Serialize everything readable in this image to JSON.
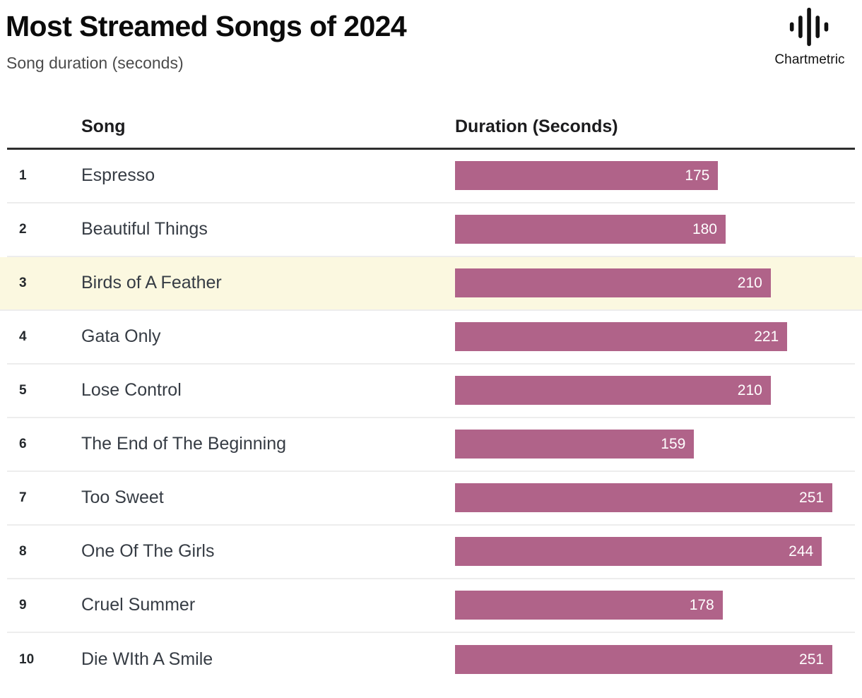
{
  "page": {
    "title": "Most Streamed Songs of 2024",
    "subtitle": "Song duration (seconds)",
    "brand": {
      "name": "Chartmetric",
      "icon": "waveform-icon"
    }
  },
  "table": {
    "columns": {
      "song": "Song",
      "duration": "Duration (Seconds)"
    },
    "rows": [
      {
        "rank": "1",
        "song": "Espresso",
        "duration": 175,
        "highlighted": false
      },
      {
        "rank": "2",
        "song": "Beautiful Things",
        "duration": 180,
        "highlighted": false
      },
      {
        "rank": "3",
        "song": "Birds of A Feather",
        "duration": 210,
        "highlighted": true
      },
      {
        "rank": "4",
        "song": "Gata Only",
        "duration": 221,
        "highlighted": false
      },
      {
        "rank": "5",
        "song": "Lose Control",
        "duration": 210,
        "highlighted": false
      },
      {
        "rank": "6",
        "song": "The End of The Beginning",
        "duration": 159,
        "highlighted": false
      },
      {
        "rank": "7",
        "song": "Too Sweet",
        "duration": 251,
        "highlighted": false
      },
      {
        "rank": "8",
        "song": "One Of The Girls",
        "duration": 244,
        "highlighted": false
      },
      {
        "rank": "9",
        "song": "Cruel Summer",
        "duration": 178,
        "highlighted": false
      },
      {
        "rank": "10",
        "song": "Die WIth A Smile",
        "duration": 251,
        "highlighted": false
      }
    ]
  },
  "chart_data": {
    "type": "bar",
    "orientation": "horizontal",
    "title": "Most Streamed Songs of 2024",
    "subtitle": "Song duration (seconds)",
    "xlabel": "Duration (Seconds)",
    "ylabel": "Song",
    "categories": [
      "Espresso",
      "Beautiful Things",
      "Birds of A Feather",
      "Gata Only",
      "Lose Control",
      "The End of The Beginning",
      "Too Sweet",
      "One Of The Girls",
      "Cruel Summer",
      "Die WIth A Smile"
    ],
    "values": [
      175,
      180,
      210,
      221,
      210,
      159,
      251,
      244,
      178,
      251
    ],
    "xlim": [
      0,
      266
    ],
    "grid": false,
    "legend": "none",
    "value_labels": "inside-end-white",
    "bar_color": "#b06389",
    "highlight_row_index": 2,
    "highlight_color": "#fbf8e0",
    "header_rule_color": "#2e2e2e",
    "row_divider_color": "#ededed"
  }
}
